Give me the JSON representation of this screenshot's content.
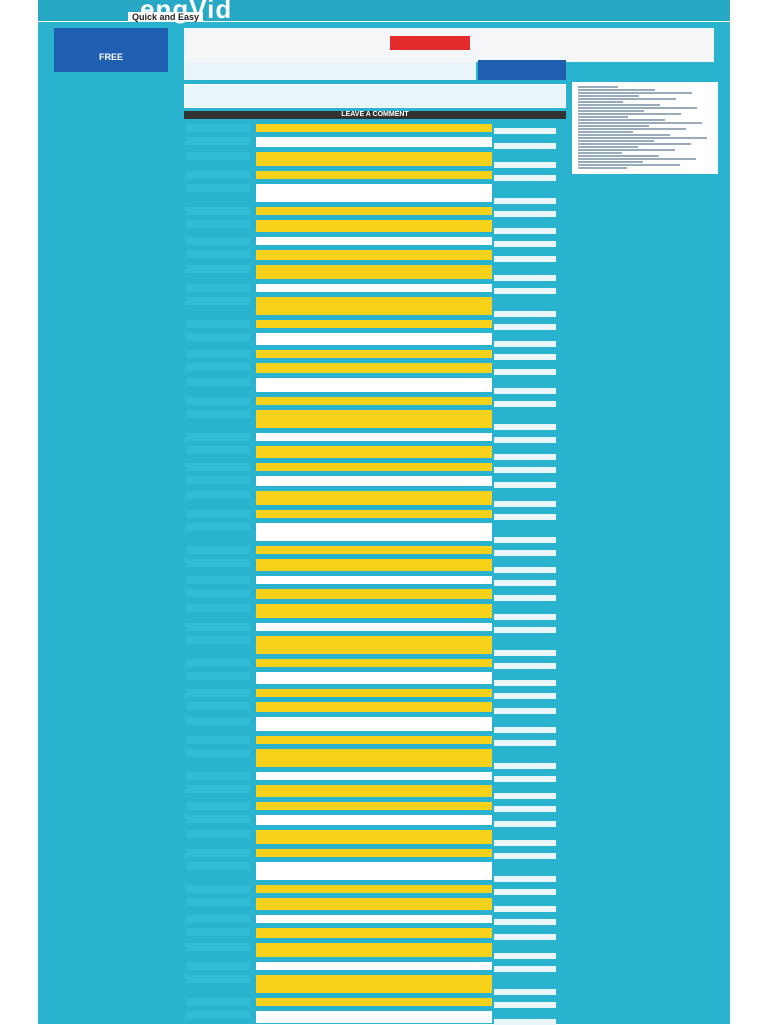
{
  "header": {
    "logo": "engVid",
    "tagline": "Quick and Easy"
  },
  "ad": {
    "label": "FREE"
  },
  "comments": {
    "title": "LEAVE A COMMENT"
  }
}
